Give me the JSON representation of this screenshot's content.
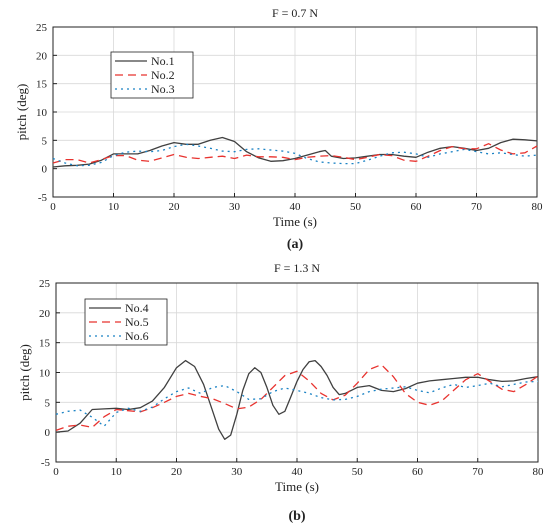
{
  "figure": {
    "panels": [
      {
        "caption": "(a)"
      },
      {
        "caption": "(b)"
      }
    ]
  },
  "chart_data": [
    {
      "type": "line",
      "title": "F = 0.7 N",
      "xlabel": "Time (s)",
      "ylabel": "pitch (deg)",
      "xlim": [
        0,
        80
      ],
      "ylim": [
        -5,
        25
      ],
      "xticks": [
        0,
        10,
        20,
        30,
        40,
        50,
        60,
        70,
        80
      ],
      "yticks": [
        -5,
        0,
        5,
        10,
        15,
        20,
        25
      ],
      "grid": true,
      "legend_position": "upper-left",
      "series": [
        {
          "name": "No.1",
          "color": "#404040",
          "dash": "solid",
          "x": [
            0,
            2,
            4,
            6,
            8,
            10,
            12,
            14,
            16,
            18,
            20,
            22,
            24,
            26,
            28,
            30,
            32,
            34,
            36,
            38,
            40,
            42,
            44,
            45,
            46,
            48,
            50,
            52,
            54,
            56,
            58,
            60,
            62,
            64,
            66,
            68,
            70,
            72,
            74,
            76,
            78,
            80
          ],
          "y": [
            0.3,
            0.5,
            0.6,
            0.8,
            1.5,
            2.6,
            2.6,
            2.6,
            3.2,
            4.0,
            4.6,
            4.3,
            4.3,
            5.0,
            5.5,
            4.8,
            3.0,
            1.9,
            1.3,
            1.4,
            1.8,
            2.4,
            3.0,
            3.2,
            2.2,
            1.8,
            1.9,
            2.2,
            2.5,
            2.5,
            2.2,
            2.0,
            2.9,
            3.6,
            3.9,
            3.6,
            3.2,
            3.6,
            4.6,
            5.2,
            5.1,
            4.9
          ]
        },
        {
          "name": "No.2",
          "color": "#e8332f",
          "dash": "8,5",
          "x": [
            0,
            2,
            4,
            6,
            8,
            10,
            12,
            14,
            16,
            18,
            20,
            22,
            24,
            26,
            28,
            30,
            32,
            34,
            36,
            38,
            40,
            42,
            44,
            46,
            48,
            50,
            52,
            54,
            56,
            58,
            60,
            62,
            64,
            66,
            68,
            70,
            72,
            74,
            76,
            78,
            80
          ],
          "y": [
            1.0,
            1.6,
            1.6,
            1.0,
            1.6,
            2.3,
            2.3,
            1.5,
            1.3,
            1.9,
            2.5,
            2.0,
            1.8,
            2.0,
            2.2,
            1.8,
            2.4,
            2.1,
            2.1,
            2.0,
            1.6,
            2.0,
            2.2,
            2.3,
            2.0,
            1.6,
            2.0,
            2.5,
            2.3,
            1.5,
            1.3,
            2.2,
            3.2,
            3.9,
            3.5,
            3.5,
            4.4,
            3.3,
            2.6,
            2.8,
            4.0
          ]
        },
        {
          "name": "No.3",
          "color": "#1a82c4",
          "dash": "2,4",
          "x": [
            0,
            2,
            4,
            6,
            8,
            10,
            12,
            14,
            16,
            18,
            20,
            22,
            24,
            26,
            28,
            30,
            32,
            34,
            36,
            38,
            40,
            42,
            44,
            46,
            48,
            50,
            52,
            54,
            56,
            58,
            60,
            62,
            64,
            66,
            68,
            70,
            72,
            74,
            76,
            78,
            80
          ],
          "y": [
            1.8,
            1.0,
            0.5,
            0.6,
            1.1,
            2.3,
            2.9,
            3.1,
            3.0,
            3.2,
            3.9,
            4.3,
            4.0,
            3.6,
            3.1,
            3.0,
            3.4,
            3.5,
            3.3,
            3.1,
            2.7,
            1.8,
            1.2,
            1.0,
            0.9,
            0.9,
            1.5,
            2.2,
            2.8,
            2.9,
            2.6,
            2.0,
            2.6,
            3.0,
            3.4,
            3.0,
            2.6,
            2.8,
            2.5,
            2.2,
            2.4
          ]
        }
      ]
    },
    {
      "type": "line",
      "title": "F = 1.3 N",
      "xlabel": "Time (s)",
      "ylabel": "pitch (deg)",
      "xlim": [
        0,
        80
      ],
      "ylim": [
        -5,
        25
      ],
      "xticks": [
        0,
        10,
        20,
        30,
        40,
        50,
        60,
        70,
        80
      ],
      "yticks": [
        -5,
        0,
        5,
        10,
        15,
        20,
        25
      ],
      "grid": true,
      "legend_position": "upper-left",
      "series": [
        {
          "name": "No.4",
          "color": "#404040",
          "dash": "solid",
          "x": [
            0,
            2,
            4,
            6,
            8,
            10,
            12,
            14,
            16,
            18,
            20,
            21.5,
            23,
            24.5,
            26,
            27,
            28,
            29,
            30,
            31,
            32,
            33,
            34,
            35,
            36,
            37,
            38,
            39,
            40,
            41,
            42,
            43,
            44,
            45,
            46,
            47,
            48,
            50,
            52,
            54,
            56,
            58,
            60,
            62,
            64,
            66,
            68,
            70,
            72,
            74,
            76,
            78,
            80
          ],
          "y": [
            0.0,
            0.2,
            1.5,
            3.8,
            3.9,
            4.0,
            3.8,
            4.1,
            5.2,
            7.5,
            10.8,
            12.0,
            11.0,
            8.0,
            3.5,
            0.5,
            -1.2,
            -0.5,
            3.0,
            7.0,
            9.8,
            10.8,
            10.0,
            7.5,
            4.5,
            3.0,
            3.5,
            6.0,
            8.5,
            10.5,
            11.8,
            12.0,
            11.0,
            9.5,
            7.5,
            6.3,
            6.5,
            7.5,
            7.8,
            7.0,
            6.8,
            7.3,
            8.2,
            8.6,
            8.8,
            9.0,
            9.2,
            9.2,
            8.8,
            8.5,
            8.6,
            9.0,
            9.3
          ]
        },
        {
          "name": "No.5",
          "color": "#e8332f",
          "dash": "8,5",
          "x": [
            0,
            2,
            4,
            6,
            8,
            10,
            12,
            14,
            16,
            18,
            20,
            22,
            24,
            26,
            28,
            30,
            32,
            34,
            36,
            38,
            40,
            42,
            44,
            46,
            48,
            50,
            52,
            54,
            56,
            58,
            60,
            62,
            64,
            66,
            68,
            70,
            72,
            74,
            76,
            78,
            80
          ],
          "y": [
            0.3,
            1.0,
            1.2,
            0.8,
            2.6,
            3.8,
            3.6,
            3.4,
            4.1,
            5.0,
            6.0,
            6.5,
            6.0,
            5.6,
            4.8,
            3.9,
            4.2,
            5.5,
            7.5,
            9.5,
            10.2,
            8.6,
            6.5,
            5.4,
            6.2,
            8.2,
            10.5,
            11.3,
            9.3,
            6.5,
            5.0,
            4.5,
            5.2,
            7.0,
            8.8,
            9.8,
            8.5,
            7.2,
            6.8,
            8.0,
            9.4
          ]
        },
        {
          "name": "No.6",
          "color": "#1a82c4",
          "dash": "2,4",
          "x": [
            0,
            2,
            4,
            6,
            8,
            10,
            12,
            14,
            16,
            18,
            20,
            22,
            24,
            26,
            28,
            30,
            32,
            34,
            36,
            38,
            40,
            42,
            44,
            46,
            48,
            50,
            52,
            54,
            56,
            58,
            60,
            62,
            64,
            66,
            68,
            70,
            72,
            74,
            76,
            78,
            80
          ],
          "y": [
            3.0,
            3.5,
            3.7,
            2.5,
            1.0,
            3.3,
            4.0,
            3.5,
            4.2,
            5.6,
            6.8,
            7.4,
            6.5,
            7.5,
            7.8,
            6.8,
            5.5,
            5.6,
            6.8,
            7.4,
            7.0,
            6.5,
            5.8,
            5.4,
            5.5,
            6.0,
            6.8,
            7.2,
            7.4,
            7.6,
            7.0,
            6.6,
            7.4,
            8.0,
            7.5,
            7.8,
            8.2,
            7.6,
            8.0,
            8.4,
            8.5
          ]
        }
      ]
    }
  ]
}
